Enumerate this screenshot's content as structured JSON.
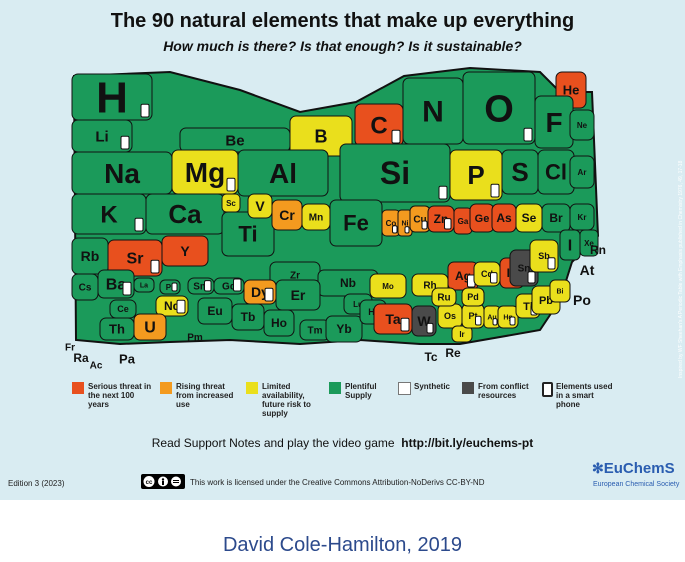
{
  "title": "The 90 natural elements that make up everything",
  "subtitle": "How much is there? Is that enough? Is it sustainable?",
  "colors": {
    "serious": "#e8501e",
    "rising": "#f39a1f",
    "limited": "#eadf1c",
    "plentiful": "#1b9a5a",
    "synthetic": "#ffffff",
    "conflict": "#4a4a4a",
    "background": "#d9ecf2",
    "brand": "#2a5db0"
  },
  "elements": [
    {
      "symbol": "H",
      "status": "plentiful"
    },
    {
      "symbol": "He",
      "status": "serious"
    },
    {
      "symbol": "Li",
      "status": "plentiful"
    },
    {
      "symbol": "Be",
      "status": "plentiful"
    },
    {
      "symbol": "B",
      "status": "limited"
    },
    {
      "symbol": "C",
      "status": "serious"
    },
    {
      "symbol": "N",
      "status": "plentiful"
    },
    {
      "symbol": "O",
      "status": "plentiful"
    },
    {
      "symbol": "F",
      "status": "plentiful"
    },
    {
      "symbol": "Ne",
      "status": "plentiful"
    },
    {
      "symbol": "Na",
      "status": "plentiful"
    },
    {
      "symbol": "Mg",
      "status": "limited"
    },
    {
      "symbol": "Al",
      "status": "plentiful"
    },
    {
      "symbol": "Si",
      "status": "plentiful"
    },
    {
      "symbol": "P",
      "status": "limited"
    },
    {
      "symbol": "S",
      "status": "plentiful"
    },
    {
      "symbol": "Cl",
      "status": "plentiful"
    },
    {
      "symbol": "Ar",
      "status": "plentiful"
    },
    {
      "symbol": "K",
      "status": "plentiful"
    },
    {
      "symbol": "Ca",
      "status": "plentiful"
    },
    {
      "symbol": "Sc",
      "status": "limited"
    },
    {
      "symbol": "Ti",
      "status": "plentiful"
    },
    {
      "symbol": "V",
      "status": "limited"
    },
    {
      "symbol": "Cr",
      "status": "rising"
    },
    {
      "symbol": "Mn",
      "status": "limited"
    },
    {
      "symbol": "Fe",
      "status": "plentiful"
    },
    {
      "symbol": "Co",
      "status": "rising"
    },
    {
      "symbol": "Ni",
      "status": "rising"
    },
    {
      "symbol": "Cu",
      "status": "rising"
    },
    {
      "symbol": "Zn",
      "status": "serious"
    },
    {
      "symbol": "Ga",
      "status": "serious"
    },
    {
      "symbol": "Ge",
      "status": "serious"
    },
    {
      "symbol": "As",
      "status": "serious"
    },
    {
      "symbol": "Se",
      "status": "limited"
    },
    {
      "symbol": "Br",
      "status": "plentiful"
    },
    {
      "symbol": "Kr",
      "status": "plentiful"
    },
    {
      "symbol": "Rb",
      "status": "plentiful"
    },
    {
      "symbol": "Sr",
      "status": "serious"
    },
    {
      "symbol": "Y",
      "status": "serious"
    },
    {
      "symbol": "Zr",
      "status": "plentiful"
    },
    {
      "symbol": "Nb",
      "status": "plentiful"
    },
    {
      "symbol": "Mo",
      "status": "limited"
    },
    {
      "symbol": "Rh",
      "status": "limited"
    },
    {
      "symbol": "Ag",
      "status": "serious"
    },
    {
      "symbol": "Cd",
      "status": "limited"
    },
    {
      "symbol": "In",
      "status": "serious"
    },
    {
      "symbol": "Sn",
      "status": "conflict"
    },
    {
      "symbol": "Sb",
      "status": "limited"
    },
    {
      "symbol": "I",
      "status": "plentiful"
    },
    {
      "symbol": "Xe",
      "status": "plentiful"
    },
    {
      "symbol": "Cs",
      "status": "plentiful"
    },
    {
      "symbol": "Ba",
      "status": "plentiful"
    },
    {
      "symbol": "La",
      "status": "plentiful"
    },
    {
      "symbol": "Ce",
      "status": "plentiful"
    },
    {
      "symbol": "Pr",
      "status": "plentiful"
    },
    {
      "symbol": "Nd",
      "status": "limited"
    },
    {
      "symbol": "Pm",
      "status": "synthetic"
    },
    {
      "symbol": "Sm",
      "status": "plentiful"
    },
    {
      "symbol": "Eu",
      "status": "plentiful"
    },
    {
      "symbol": "Gd",
      "status": "plentiful"
    },
    {
      "symbol": "Tb",
      "status": "plentiful"
    },
    {
      "symbol": "Dy",
      "status": "rising"
    },
    {
      "symbol": "Ho",
      "status": "plentiful"
    },
    {
      "symbol": "Er",
      "status": "plentiful"
    },
    {
      "symbol": "Tm",
      "status": "plentiful"
    },
    {
      "symbol": "Yb",
      "status": "plentiful"
    },
    {
      "symbol": "Lu",
      "status": "plentiful"
    },
    {
      "symbol": "Hf",
      "status": "plentiful"
    },
    {
      "symbol": "Ta",
      "status": "serious"
    },
    {
      "symbol": "W",
      "status": "conflict"
    },
    {
      "symbol": "Re",
      "status": "synthetic"
    },
    {
      "symbol": "Os",
      "status": "limited"
    },
    {
      "symbol": "Ir",
      "status": "limited"
    },
    {
      "symbol": "Pt",
      "status": "limited"
    },
    {
      "symbol": "Au",
      "status": "limited"
    },
    {
      "symbol": "Hg",
      "status": "limited"
    },
    {
      "symbol": "Tl",
      "status": "limited"
    },
    {
      "symbol": "Pb",
      "status": "limited"
    },
    {
      "symbol": "Bi",
      "status": "limited"
    },
    {
      "symbol": "Po",
      "status": "synthetic"
    },
    {
      "symbol": "At",
      "status": "synthetic"
    },
    {
      "symbol": "Rn",
      "status": "synthetic"
    },
    {
      "symbol": "Fr",
      "status": "synthetic"
    },
    {
      "symbol": "Ra",
      "status": "synthetic"
    },
    {
      "symbol": "Ac",
      "status": "synthetic"
    },
    {
      "symbol": "Th",
      "status": "plentiful"
    },
    {
      "symbol": "Pa",
      "status": "synthetic"
    },
    {
      "symbol": "U",
      "status": "rising"
    },
    {
      "symbol": "Tc",
      "status": "synthetic"
    },
    {
      "symbol": "Ru",
      "status": "limited"
    },
    {
      "symbol": "Pd",
      "status": "limited"
    }
  ],
  "legend": {
    "serious": "Serious threat in the next 100 years",
    "rising": "Rising threat from increased use",
    "limited": "Limited availability, future risk to supply",
    "plentiful": "Plentiful Supply",
    "synthetic": "Synthetic",
    "conflict": "From conflict resources",
    "smartphone": "Elements used in a smart phone"
  },
  "support_text": "Read Support Notes and play the video game",
  "support_link": "http://bit.ly/euchems-pt",
  "edition": "Edition 3 (2023)",
  "license": "This work is licensed under the Creative Commons Attribution-NoDerivs CC-BY-ND",
  "brand_name": "EuChemS",
  "brand_sub": "European Chemical Society",
  "side_note": "Inspired by WF Sheehan's A Periodic Table with Emphasis published in Chemistry 1976, 49, 17-18",
  "author": "David Cole-Hamilton, 2019"
}
